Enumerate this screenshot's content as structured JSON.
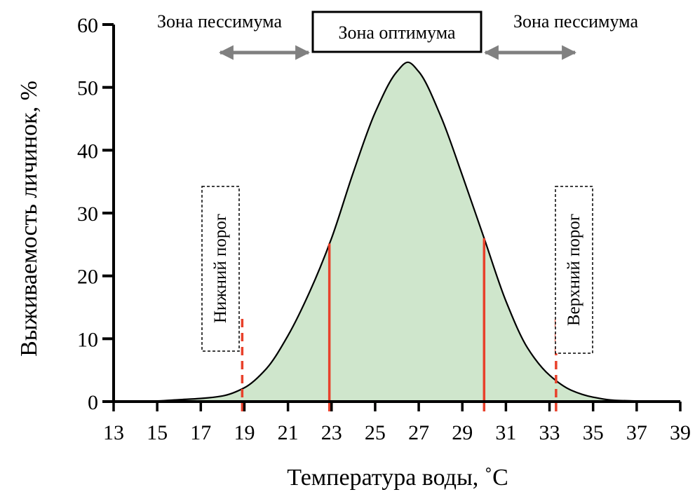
{
  "chart_data": {
    "type": "area",
    "title": "",
    "xlabel": "Температура воды, ˚С",
    "ylabel": "Выживаемость личинок, %",
    "xlim": [
      13,
      39
    ],
    "ylim": [
      0,
      60
    ],
    "xticks": [
      13,
      15,
      17,
      19,
      21,
      23,
      25,
      27,
      29,
      31,
      33,
      35,
      37,
      39
    ],
    "yticks": [
      0,
      10,
      20,
      30,
      40,
      50,
      60
    ],
    "grid": false,
    "series": [
      {
        "x": [
          13,
          14,
          15,
          16,
          17,
          18,
          19,
          20,
          21,
          22,
          23,
          24,
          25,
          26,
          26.5,
          27,
          28,
          29,
          30,
          31,
          32,
          33,
          34,
          35,
          36,
          37,
          38,
          39
        ],
        "y": [
          0.0,
          0.0,
          0.1,
          0.3,
          0.5,
          0.9,
          2.2,
          5.2,
          10.5,
          17.5,
          26.0,
          36.5,
          46.0,
          52.5,
          54.0,
          52.5,
          45.5,
          36.0,
          26.0,
          16.0,
          8.5,
          4.2,
          1.8,
          0.7,
          0.2,
          0.1,
          0.0,
          0.0
        ]
      }
    ],
    "optimum_bounds": [
      22.9,
      30.0
    ],
    "threshold_lines": [
      18.9,
      33.3
    ],
    "zones": {
      "pessimum_left": "Зона пессимума",
      "optimum": "Зона оптимума",
      "pessimum_right": "Зона пессимума"
    },
    "thresholds": {
      "lower": "Нижний порог",
      "upper": "Верхний порог"
    },
    "colors": {
      "fill": "#cfe6cc",
      "curve": "#000000",
      "baseline": "#2f6b2a",
      "red": "#e8412b",
      "arrow": "#808080"
    }
  }
}
